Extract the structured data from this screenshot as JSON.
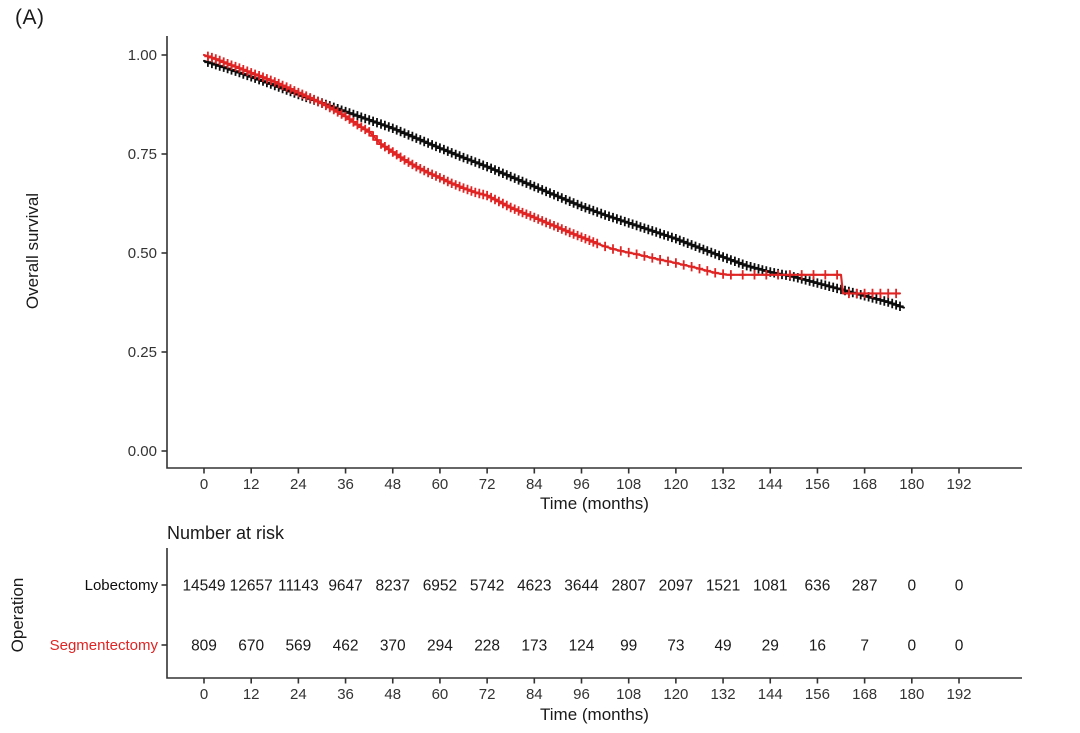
{
  "panel_label": "(A)",
  "colors": {
    "background": "#ffffff",
    "axis": "#333333",
    "tick_text": "#333333",
    "text": "#1a1a1a",
    "lobectomy": "#0d0d0d",
    "segmentectomy": "#e02424"
  },
  "chart_data": {
    "type": "line",
    "subtype": "kaplan-meier-survival",
    "title": "",
    "xlabel": "Time (months)",
    "ylabel": "Overall survival",
    "xlim": [
      0,
      192
    ],
    "ylim": [
      0.0,
      1.0
    ],
    "grid": false,
    "legend_position": "none",
    "xticks": [
      0,
      12,
      24,
      36,
      48,
      60,
      72,
      84,
      96,
      108,
      120,
      132,
      144,
      156,
      168,
      180,
      192
    ],
    "yticks": [
      {
        "value": 0.0,
        "label": "0.00"
      },
      {
        "value": 0.25,
        "label": "0.25"
      },
      {
        "value": 0.5,
        "label": "0.50"
      },
      {
        "value": 0.75,
        "label": "0.75"
      },
      {
        "value": 1.0,
        "label": "1.00"
      }
    ],
    "series": [
      {
        "name": "Lobectomy",
        "color": "#0d0d0d",
        "points": [
          [
            0,
            0.985
          ],
          [
            6,
            0.966
          ],
          [
            12,
            0.945
          ],
          [
            18,
            0.923
          ],
          [
            24,
            0.9
          ],
          [
            30,
            0.879
          ],
          [
            36,
            0.857
          ],
          [
            42,
            0.836
          ],
          [
            48,
            0.815
          ],
          [
            54,
            0.79
          ],
          [
            60,
            0.765
          ],
          [
            66,
            0.741
          ],
          [
            72,
            0.718
          ],
          [
            78,
            0.693
          ],
          [
            84,
            0.668
          ],
          [
            90,
            0.643
          ],
          [
            96,
            0.618
          ],
          [
            102,
            0.596
          ],
          [
            108,
            0.576
          ],
          [
            114,
            0.556
          ],
          [
            120,
            0.536
          ],
          [
            126,
            0.513
          ],
          [
            132,
            0.49
          ],
          [
            138,
            0.468
          ],
          [
            144,
            0.452
          ],
          [
            147,
            0.446
          ],
          [
            150,
            0.44
          ],
          [
            156,
            0.424
          ],
          [
            162,
            0.408
          ],
          [
            168,
            0.392
          ],
          [
            174,
            0.376
          ],
          [
            178,
            0.362
          ]
        ],
        "censor_ranges": [
          {
            "start": 1,
            "end": 177,
            "step": 1
          }
        ]
      },
      {
        "name": "Segmentectomy",
        "color": "#e02424",
        "points": [
          [
            0,
            1.0
          ],
          [
            3,
            0.99
          ],
          [
            6,
            0.978
          ],
          [
            9,
            0.967
          ],
          [
            12,
            0.955
          ],
          [
            15,
            0.944
          ],
          [
            18,
            0.932
          ],
          [
            21,
            0.919
          ],
          [
            24,
            0.905
          ],
          [
            27,
            0.892
          ],
          [
            30,
            0.878
          ],
          [
            33,
            0.862
          ],
          [
            36,
            0.845
          ],
          [
            39,
            0.824
          ],
          [
            42,
            0.806
          ],
          [
            45,
            0.775
          ],
          [
            48,
            0.755
          ],
          [
            51,
            0.735
          ],
          [
            54,
            0.718
          ],
          [
            57,
            0.703
          ],
          [
            60,
            0.69
          ],
          [
            63,
            0.676
          ],
          [
            66,
            0.664
          ],
          [
            69,
            0.653
          ],
          [
            72,
            0.645
          ],
          [
            75,
            0.63
          ],
          [
            78,
            0.615
          ],
          [
            81,
            0.602
          ],
          [
            84,
            0.59
          ],
          [
            87,
            0.577
          ],
          [
            90,
            0.565
          ],
          [
            93,
            0.552
          ],
          [
            96,
            0.54
          ],
          [
            99,
            0.528
          ],
          [
            101,
            0.52
          ],
          [
            104,
            0.51
          ],
          [
            107,
            0.503
          ],
          [
            110,
            0.497
          ],
          [
            113,
            0.49
          ],
          [
            116,
            0.483
          ],
          [
            119,
            0.477
          ],
          [
            122,
            0.47
          ],
          [
            125,
            0.463
          ],
          [
            128,
            0.455
          ],
          [
            130,
            0.45
          ],
          [
            133,
            0.445
          ],
          [
            162,
            0.445
          ],
          [
            162.5,
            0.398
          ],
          [
            177,
            0.398
          ]
        ],
        "censor_ranges": [
          {
            "start": 1,
            "end": 100,
            "step": 1
          },
          {
            "start": 102,
            "end": 132,
            "step": 2
          },
          {
            "start": 134,
            "end": 161,
            "step": 3
          },
          {
            "start": 164,
            "end": 176,
            "step": 2
          }
        ]
      }
    ]
  },
  "risk_table": {
    "title": "Number at risk",
    "group_axis_label": "Operation",
    "xlabel": "Time (months)",
    "xticks": [
      0,
      12,
      24,
      36,
      48,
      60,
      72,
      84,
      96,
      108,
      120,
      132,
      144,
      156,
      168,
      180,
      192
    ],
    "rows": [
      {
        "label": "Lobectomy",
        "color": "#0d0d0d",
        "values": [
          14549,
          12657,
          11143,
          9647,
          8237,
          6952,
          5742,
          4623,
          3644,
          2807,
          2097,
          1521,
          1081,
          636,
          287,
          0,
          0
        ]
      },
      {
        "label": "Segmentectomy",
        "color": "#e02424",
        "values": [
          809,
          670,
          569,
          462,
          370,
          294,
          228,
          173,
          124,
          99,
          73,
          49,
          29,
          16,
          7,
          0,
          0
        ]
      }
    ]
  }
}
